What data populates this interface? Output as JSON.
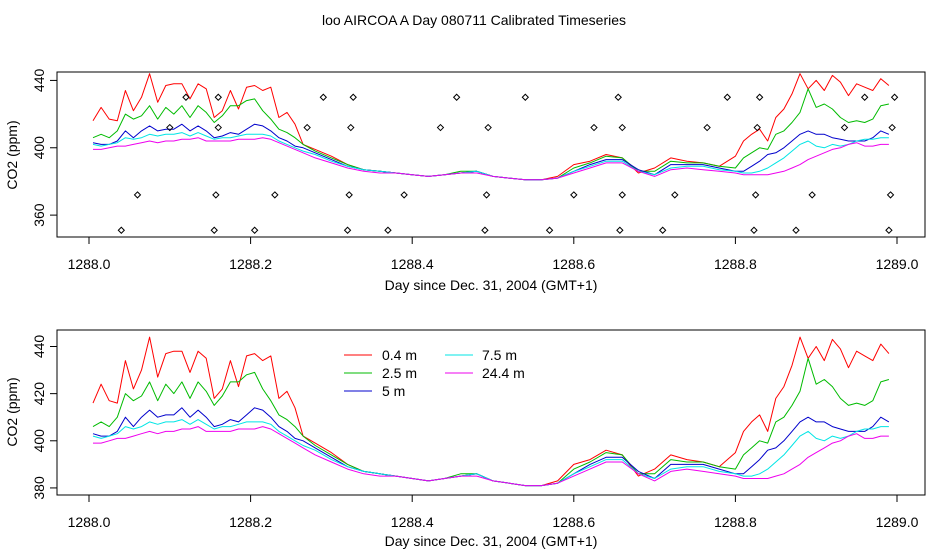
{
  "figure": {
    "title": "loo AIRCOA A  Day 080711  Calibrated Timeseries"
  },
  "chart_data": [
    {
      "type": "line",
      "xlabel": "Day since Dec. 31, 2004 (GMT+1)",
      "ylabel": "CO2 (ppm)",
      "xlim": [
        1288.0,
        1289.0
      ],
      "ylim": [
        347,
        445
      ],
      "x_ticks": [
        "1288.0",
        "1288.2",
        "1288.4",
        "1288.6",
        "1288.8",
        "1289.0"
      ],
      "y_ticks": [
        "360",
        "400",
        "440"
      ],
      "grid": false,
      "legend": "none",
      "series": [
        {
          "color": "#ff0000",
          "x": [
            1288.005,
            1288.015,
            1288.025,
            1288.035,
            1288.045,
            1288.055,
            1288.065,
            1288.075,
            1288.085,
            1288.095,
            1288.105,
            1288.115,
            1288.125,
            1288.135,
            1288.145,
            1288.155,
            1288.165,
            1288.175,
            1288.185,
            1288.195,
            1288.205,
            1288.215,
            1288.225,
            1288.235,
            1288.245,
            1288.255,
            1288.265,
            1288.28,
            1288.3,
            1288.32,
            1288.34,
            1288.36,
            1288.38,
            1288.4,
            1288.42,
            1288.44,
            1288.46,
            1288.48,
            1288.5,
            1288.52,
            1288.54,
            1288.56,
            1288.58,
            1288.6,
            1288.62,
            1288.64,
            1288.66,
            1288.68,
            1288.7,
            1288.72,
            1288.74,
            1288.76,
            1288.78,
            1288.8,
            1288.81,
            1288.82,
            1288.83,
            1288.84,
            1288.85,
            1288.86,
            1288.87,
            1288.88,
            1288.89,
            1288.9,
            1288.91,
            1288.92,
            1288.93,
            1288.94,
            1288.95,
            1288.96,
            1288.97,
            1288.98,
            1288.99
          ],
          "y": [
            416,
            424,
            417,
            416,
            434,
            422,
            430,
            444,
            427,
            437,
            438,
            438,
            429,
            438,
            435,
            418,
            422,
            434,
            423,
            436,
            437,
            434,
            436,
            418,
            421,
            414,
            402,
            399,
            395,
            390,
            387,
            386,
            385,
            384,
            383,
            384,
            385,
            386,
            383,
            382,
            381,
            381,
            383,
            390,
            392,
            396,
            394,
            385,
            388,
            394,
            392,
            391,
            389,
            395,
            404,
            408,
            411,
            404,
            418,
            423,
            432,
            444,
            435,
            440,
            434,
            443,
            439,
            431,
            438,
            436,
            434,
            441,
            437
          ]
        },
        {
          "color": "#00bb00",
          "x": [
            1288.005,
            1288.015,
            1288.025,
            1288.035,
            1288.045,
            1288.055,
            1288.065,
            1288.075,
            1288.085,
            1288.095,
            1288.105,
            1288.115,
            1288.125,
            1288.135,
            1288.145,
            1288.155,
            1288.165,
            1288.175,
            1288.185,
            1288.195,
            1288.205,
            1288.215,
            1288.225,
            1288.235,
            1288.245,
            1288.255,
            1288.265,
            1288.28,
            1288.3,
            1288.32,
            1288.34,
            1288.36,
            1288.38,
            1288.4,
            1288.42,
            1288.44,
            1288.46,
            1288.48,
            1288.5,
            1288.52,
            1288.54,
            1288.56,
            1288.58,
            1288.6,
            1288.62,
            1288.64,
            1288.66,
            1288.68,
            1288.7,
            1288.72,
            1288.74,
            1288.76,
            1288.78,
            1288.8,
            1288.81,
            1288.82,
            1288.83,
            1288.84,
            1288.85,
            1288.86,
            1288.87,
            1288.88,
            1288.89,
            1288.9,
            1288.91,
            1288.92,
            1288.93,
            1288.94,
            1288.95,
            1288.96,
            1288.97,
            1288.98,
            1288.99
          ],
          "y": [
            406,
            408,
            406,
            410,
            420,
            417,
            419,
            425,
            417,
            424,
            420,
            425,
            418,
            425,
            421,
            415,
            419,
            425,
            425,
            428,
            429,
            422,
            417,
            411,
            409,
            406,
            402,
            398,
            394,
            390,
            387,
            386,
            385,
            384,
            383,
            384,
            386,
            386,
            383,
            382,
            381,
            381,
            382,
            388,
            391,
            395,
            394,
            386,
            386,
            392,
            391,
            391,
            389,
            388,
            394,
            397,
            400,
            399,
            408,
            410,
            415,
            421,
            435,
            424,
            426,
            423,
            418,
            415,
            416,
            415,
            417,
            425,
            426
          ]
        },
        {
          "color": "#0000cc",
          "x": [
            1288.005,
            1288.015,
            1288.025,
            1288.035,
            1288.045,
            1288.055,
            1288.065,
            1288.075,
            1288.085,
            1288.095,
            1288.105,
            1288.115,
            1288.125,
            1288.135,
            1288.145,
            1288.155,
            1288.165,
            1288.175,
            1288.185,
            1288.195,
            1288.205,
            1288.215,
            1288.225,
            1288.235,
            1288.245,
            1288.255,
            1288.265,
            1288.28,
            1288.3,
            1288.32,
            1288.34,
            1288.36,
            1288.38,
            1288.4,
            1288.42,
            1288.44,
            1288.46,
            1288.48,
            1288.5,
            1288.52,
            1288.54,
            1288.56,
            1288.58,
            1288.6,
            1288.62,
            1288.64,
            1288.66,
            1288.68,
            1288.7,
            1288.72,
            1288.74,
            1288.76,
            1288.78,
            1288.8,
            1288.81,
            1288.82,
            1288.83,
            1288.84,
            1288.85,
            1288.86,
            1288.87,
            1288.88,
            1288.89,
            1288.9,
            1288.91,
            1288.92,
            1288.93,
            1288.94,
            1288.95,
            1288.96,
            1288.97,
            1288.98,
            1288.99
          ],
          "y": [
            403,
            402,
            402,
            404,
            410,
            406,
            410,
            413,
            410,
            411,
            411,
            414,
            410,
            413,
            410,
            406,
            407,
            409,
            408,
            411,
            414,
            413,
            410,
            406,
            404,
            401,
            400,
            397,
            393,
            389,
            387,
            386,
            385,
            384,
            383,
            384,
            385,
            386,
            383,
            382,
            381,
            381,
            382,
            386,
            390,
            393,
            393,
            387,
            384,
            390,
            390,
            390,
            388,
            386,
            386,
            389,
            392,
            396,
            397,
            400,
            404,
            408,
            410,
            408,
            408,
            406,
            405,
            404,
            404,
            404,
            406,
            410,
            408
          ]
        },
        {
          "color": "#00e5e5",
          "x": [
            1288.005,
            1288.015,
            1288.025,
            1288.035,
            1288.045,
            1288.055,
            1288.065,
            1288.075,
            1288.085,
            1288.095,
            1288.105,
            1288.115,
            1288.125,
            1288.135,
            1288.145,
            1288.155,
            1288.165,
            1288.175,
            1288.185,
            1288.195,
            1288.205,
            1288.215,
            1288.225,
            1288.235,
            1288.245,
            1288.255,
            1288.265,
            1288.28,
            1288.3,
            1288.32,
            1288.34,
            1288.36,
            1288.38,
            1288.4,
            1288.42,
            1288.44,
            1288.46,
            1288.48,
            1288.5,
            1288.52,
            1288.54,
            1288.56,
            1288.58,
            1288.6,
            1288.62,
            1288.64,
            1288.66,
            1288.68,
            1288.7,
            1288.72,
            1288.74,
            1288.76,
            1288.78,
            1288.8,
            1288.81,
            1288.82,
            1288.83,
            1288.84,
            1288.85,
            1288.86,
            1288.87,
            1288.88,
            1288.89,
            1288.9,
            1288.91,
            1288.92,
            1288.93,
            1288.94,
            1288.95,
            1288.96,
            1288.97,
            1288.98,
            1288.99
          ],
          "y": [
            402,
            401,
            402,
            403,
            406,
            405,
            406,
            408,
            407,
            408,
            408,
            409,
            407,
            409,
            407,
            405,
            406,
            406,
            407,
            408,
            408,
            408,
            407,
            404,
            402,
            400,
            398,
            396,
            392,
            389,
            387,
            386,
            385,
            384,
            383,
            384,
            385,
            386,
            383,
            382,
            381,
            381,
            382,
            386,
            389,
            392,
            392,
            386,
            384,
            388,
            389,
            389,
            387,
            386,
            385,
            385,
            386,
            388,
            391,
            394,
            398,
            402,
            404,
            401,
            400,
            402,
            401,
            402,
            404,
            405,
            405,
            406,
            406
          ]
        },
        {
          "color": "#ee00ee",
          "x": [
            1288.005,
            1288.015,
            1288.025,
            1288.035,
            1288.045,
            1288.055,
            1288.065,
            1288.075,
            1288.085,
            1288.095,
            1288.105,
            1288.115,
            1288.125,
            1288.135,
            1288.145,
            1288.155,
            1288.165,
            1288.175,
            1288.185,
            1288.195,
            1288.205,
            1288.215,
            1288.225,
            1288.235,
            1288.245,
            1288.255,
            1288.265,
            1288.28,
            1288.3,
            1288.32,
            1288.34,
            1288.36,
            1288.38,
            1288.4,
            1288.42,
            1288.44,
            1288.46,
            1288.48,
            1288.5,
            1288.52,
            1288.54,
            1288.56,
            1288.58,
            1288.6,
            1288.62,
            1288.64,
            1288.66,
            1288.68,
            1288.7,
            1288.72,
            1288.74,
            1288.76,
            1288.78,
            1288.8,
            1288.81,
            1288.82,
            1288.83,
            1288.84,
            1288.85,
            1288.86,
            1288.87,
            1288.88,
            1288.89,
            1288.9,
            1288.91,
            1288.92,
            1288.93,
            1288.94,
            1288.95,
            1288.96,
            1288.97,
            1288.98,
            1288.99
          ],
          "y": [
            399,
            399,
            400,
            401,
            401,
            402,
            403,
            404,
            403,
            404,
            404,
            405,
            405,
            406,
            404,
            404,
            404,
            404,
            405,
            405,
            405,
            406,
            405,
            403,
            401,
            399,
            397,
            394,
            391,
            388,
            386,
            385,
            385,
            384,
            383,
            384,
            385,
            385,
            383,
            382,
            381,
            381,
            382,
            385,
            388,
            391,
            391,
            386,
            383,
            387,
            388,
            387,
            386,
            385,
            384,
            384,
            384,
            384,
            385,
            386,
            388,
            390,
            393,
            395,
            397,
            399,
            400,
            402,
            403,
            401,
            401,
            402,
            402
          ]
        },
        {
          "color": "#000000",
          "mode": "markers",
          "marker": "open-diamond",
          "x": [
            1288.04,
            1288.06,
            1288.1,
            1288.12,
            1288.155,
            1288.157,
            1288.16,
            1288.16,
            1288.205,
            1288.23,
            1288.27,
            1288.29,
            1288.32,
            1288.322,
            1288.324,
            1288.327,
            1288.37,
            1288.39,
            1288.435,
            1288.455,
            1288.49,
            1288.492,
            1288.494,
            1288.54,
            1288.57,
            1288.6,
            1288.625,
            1288.655,
            1288.657,
            1288.66,
            1288.66,
            1288.71,
            1288.725,
            1288.765,
            1288.79,
            1288.823,
            1288.825,
            1288.827,
            1288.83,
            1288.875,
            1288.895,
            1288.935,
            1288.96,
            1288.99,
            1288.992,
            1288.994,
            1288.997
          ],
          "y": [
            351,
            372,
            412,
            430,
            351,
            372,
            412,
            430,
            351,
            372,
            412,
            430,
            351,
            372,
            412,
            430,
            351,
            372,
            412,
            430,
            351,
            372,
            412,
            430,
            351,
            372,
            412,
            430,
            351,
            372,
            412,
            351,
            372,
            412,
            430,
            351,
            372,
            412,
            430,
            351,
            372,
            412,
            430,
            351,
            372,
            412,
            430
          ]
        }
      ]
    },
    {
      "type": "line",
      "xlabel": "Day since Dec. 31, 2004 (GMT+1)",
      "ylabel": "CO2 (ppm)",
      "xlim": [
        1288.0,
        1289.0
      ],
      "ylim": [
        377,
        447
      ],
      "x_ticks": [
        "1288.0",
        "1288.2",
        "1288.4",
        "1288.6",
        "1288.8",
        "1289.0"
      ],
      "y_ticks": [
        "380",
        "400",
        "420",
        "440"
      ],
      "grid": false,
      "legend": "top-center",
      "series": [
        {
          "name": "0.4 m",
          "color": "#ff0000",
          "ref": 0
        },
        {
          "name": "2.5 m",
          "color": "#00bb00",
          "ref": 1
        },
        {
          "name": "5 m",
          "color": "#0000cc",
          "ref": 2
        },
        {
          "name": "7.5 m",
          "color": "#00e5e5",
          "ref": 3
        },
        {
          "name": "24.4 m",
          "color": "#ee00ee",
          "ref": 4
        }
      ]
    }
  ]
}
